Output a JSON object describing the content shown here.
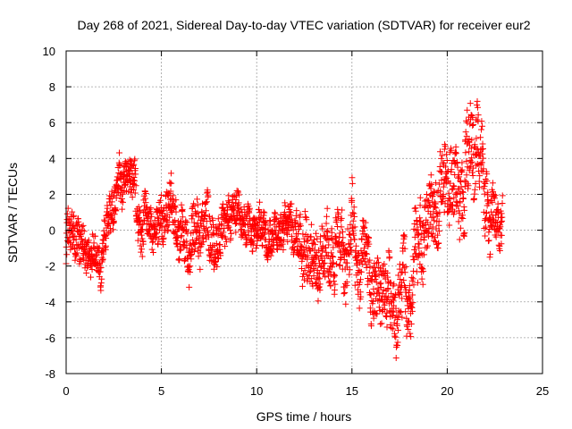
{
  "chart_data": {
    "type": "scatter",
    "title": "Day 268 of 2021, Sidereal Day-to-day VTEC variation (SDTVAR) for receiver eur2",
    "xlabel": "GPS time / hours",
    "ylabel": "SDTVAR / TECUs",
    "xlim": [
      0,
      25
    ],
    "ylim": [
      -8,
      10
    ],
    "xticks": [
      "0",
      "5",
      "10",
      "15",
      "20",
      "25"
    ],
    "yticks": [
      "-8",
      "-6",
      "-4",
      "-2",
      "0",
      "2",
      "4",
      "6",
      "8",
      "10"
    ],
    "grid": true,
    "marker": "+",
    "color": "#ff0000",
    "trace_x": [
      0,
      0.3,
      0.6,
      1.0,
      1.4,
      1.8,
      2.1,
      2.4,
      2.7,
      3.0,
      3.2,
      3.5,
      3.8,
      4.2,
      4.6,
      5.0,
      5.4,
      5.8,
      6.1,
      6.4,
      6.7,
      7.0,
      7.3,
      7.6,
      7.9,
      8.2,
      8.5,
      8.8,
      9.1,
      9.4,
      9.7,
      10.0,
      10.3,
      10.6,
      10.9,
      11.2,
      11.5,
      11.8,
      12.1,
      12.4,
      12.6,
      12.9,
      13.2,
      13.5,
      13.8,
      14.1,
      14.4,
      14.7,
      15.0,
      15.3,
      15.6,
      15.9,
      16.2,
      16.5,
      16.8,
      17.1,
      17.4,
      17.7,
      18.0,
      18.3,
      18.6,
      18.9,
      19.2,
      19.5,
      19.8,
      20.1,
      20.4,
      20.7,
      21.0,
      21.3,
      21.6,
      21.9,
      22.2,
      22.5,
      22.9
    ],
    "trace_mid": [
      -1.2,
      -0.4,
      -0.8,
      -1.5,
      -0.9,
      -1.6,
      -0.3,
      1.0,
      2.4,
      2.6,
      3.2,
      1.6,
      0.2,
      0.8,
      0.4,
      0.6,
      1.4,
      0.5,
      0.2,
      -1.8,
      0.8,
      -1.2,
      1.8,
      -0.8,
      -0.4,
      0.3,
      0.8,
      0.9,
      1.5,
      0.4,
      -0.8,
      0.6,
      -0.2,
      0.7,
      0.3,
      -0.1,
      0.4,
      0.7,
      0.5,
      -1.6,
      -0.8,
      -2.0,
      -2.5,
      -1.0,
      -1.8,
      -0.6,
      -1.4,
      -1.8,
      -0.2,
      -2.6,
      -1.2,
      -2.4,
      -3.4,
      -4.0,
      -3.2,
      -4.8,
      -3.8,
      -2.6,
      -4.2,
      -1.6,
      -0.4,
      0.4,
      0.8,
      1.2,
      2.6,
      3.4,
      2.0,
      3.2,
      3.8,
      4.6,
      5.2,
      2.4,
      1.2,
      0.8,
      0.4
    ],
    "trace_spread": [
      1.5,
      1.3,
      1.4,
      1.2,
      1.3,
      1.4,
      1.5,
      1.8,
      1.6,
      1.4,
      1.2,
      1.4,
      1.5,
      1.4,
      1.3,
      1.5,
      1.6,
      1.7,
      1.6,
      2.0,
      1.8,
      2.0,
      1.6,
      1.8,
      1.7,
      1.4,
      1.3,
      1.3,
      1.1,
      1.2,
      1.4,
      1.3,
      1.3,
      1.2,
      1.2,
      1.3,
      1.2,
      1.3,
      1.4,
      2.4,
      2.2,
      2.1,
      2.0,
      2.4,
      2.0,
      2.2,
      2.1,
      2.2,
      2.5,
      2.1,
      2.4,
      2.3,
      2.4,
      2.1,
      2.4,
      2.0,
      2.2,
      2.4,
      2.1,
      2.6,
      2.5,
      2.3,
      2.2,
      2.3,
      2.4,
      2.5,
      2.6,
      2.7,
      2.9,
      3.0,
      2.6,
      2.1,
      1.8,
      1.5,
      1.6
    ]
  }
}
